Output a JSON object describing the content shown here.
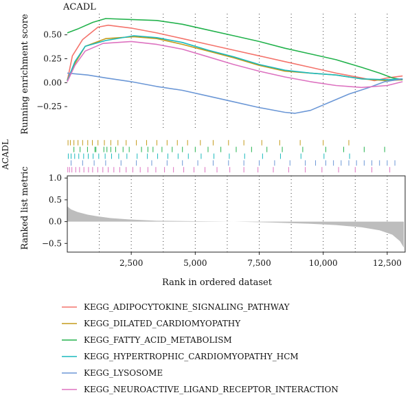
{
  "chart_data": {
    "type": "line",
    "title": "ACADL",
    "ylabel_top": "Running enrichment score",
    "ylabel_bottom": "Ranked list metric",
    "side_label": "ACADL",
    "xlabel": "Rank in ordered dataset",
    "xlim": [
      1,
      13200
    ],
    "top_ylim": [
      -0.5,
      0.72
    ],
    "bottom_ylim": [
      -0.7,
      1.05
    ],
    "x_ticks": [
      {
        "value": 2500,
        "label": "2,500"
      },
      {
        "value": 5000,
        "label": "5,000"
      },
      {
        "value": 7500,
        "label": "7,500"
      },
      {
        "value": 10000,
        "label": "10,000"
      },
      {
        "value": 12500,
        "label": "12,500"
      }
    ],
    "top_y_ticks": [
      {
        "value": 0.5,
        "label": "0.50"
      },
      {
        "value": 0.25,
        "label": "0.25"
      },
      {
        "value": 0.0,
        "label": "0.00"
      },
      {
        "value": -0.25,
        "label": "−0.25"
      }
    ],
    "bottom_y_ticks": [
      {
        "value": 1.0,
        "label": "1.0"
      },
      {
        "value": 0.5,
        "label": "0.5"
      },
      {
        "value": 0.0,
        "label": "0.0"
      },
      {
        "value": -0.5,
        "label": "−0.5"
      }
    ],
    "vertical_dotted_lines": [
      1250,
      2500,
      3750,
      5000,
      6250,
      7500,
      8750,
      10000,
      11250,
      12500
    ],
    "grid": false,
    "legend_position": "bottom",
    "series": [
      {
        "name": "KEGG_ADIPOCYTOKINE_SIGNALING_PATHWAY",
        "color": "#f4736b",
        "points": [
          [
            0,
            0.02
          ],
          [
            200,
            0.28
          ],
          [
            600,
            0.45
          ],
          [
            1200,
            0.58
          ],
          [
            1600,
            0.6
          ],
          [
            2500,
            0.57
          ],
          [
            3500,
            0.52
          ],
          [
            4500,
            0.46
          ],
          [
            5500,
            0.4
          ],
          [
            6500,
            0.34
          ],
          [
            7500,
            0.28
          ],
          [
            8500,
            0.22
          ],
          [
            9500,
            0.16
          ],
          [
            10500,
            0.1
          ],
          [
            11500,
            0.05
          ],
          [
            12000,
            0.02
          ],
          [
            12500,
            0.05
          ],
          [
            13100,
            0.07
          ]
        ],
        "hits": []
      },
      {
        "name": "KEGG_DILATED_CARDIOMYOPATHY",
        "color": "#c39a1a",
        "points": [
          [
            0,
            0.03
          ],
          [
            300,
            0.2
          ],
          [
            700,
            0.38
          ],
          [
            1500,
            0.46
          ],
          [
            2600,
            0.48
          ],
          [
            3500,
            0.46
          ],
          [
            4500,
            0.4
          ],
          [
            5500,
            0.33
          ],
          [
            6500,
            0.26
          ],
          [
            7500,
            0.18
          ],
          [
            8500,
            0.12
          ],
          [
            9500,
            0.1
          ],
          [
            10500,
            0.08
          ],
          [
            11500,
            0.04
          ],
          [
            12500,
            0.02
          ],
          [
            13100,
            0.03
          ]
        ],
        "hits": [
          30,
          120,
          260,
          420,
          600,
          800,
          980,
          1200,
          1450,
          1700,
          1980,
          2300,
          2700,
          3100,
          3500,
          3900,
          4300,
          4700,
          5200,
          5700,
          6300,
          6900,
          7600,
          8300,
          9100,
          10000,
          11000
        ]
      },
      {
        "name": "KEGG_FATTY_ACID_METABOLISM",
        "color": "#22b24c",
        "points": [
          [
            0,
            0.52
          ],
          [
            400,
            0.56
          ],
          [
            1000,
            0.63
          ],
          [
            1500,
            0.67
          ],
          [
            2500,
            0.66
          ],
          [
            3500,
            0.65
          ],
          [
            4500,
            0.61
          ],
          [
            5500,
            0.55
          ],
          [
            6500,
            0.49
          ],
          [
            7500,
            0.43
          ],
          [
            8500,
            0.36
          ],
          [
            9500,
            0.3
          ],
          [
            10500,
            0.24
          ],
          [
            11500,
            0.16
          ],
          [
            12200,
            0.1
          ],
          [
            12700,
            0.05
          ],
          [
            13100,
            0.03
          ]
        ],
        "hits": [
          260,
          500,
          790,
          1080,
          1120,
          1430,
          1550,
          1700,
          1890,
          2180,
          2420,
          2900,
          3150,
          3350,
          3700,
          4100,
          4500,
          5000,
          5500,
          6000,
          6600,
          7200,
          7800,
          8400,
          9200,
          10100,
          10800,
          11600,
          12400
        ]
      },
      {
        "name": "KEGG_HYPERTROPHIC_CARDIOMYOPATHY_HCM",
        "color": "#1ab9bd",
        "points": [
          [
            0,
            0.02
          ],
          [
            300,
            0.22
          ],
          [
            700,
            0.38
          ],
          [
            1500,
            0.44
          ],
          [
            2600,
            0.49
          ],
          [
            3500,
            0.47
          ],
          [
            4500,
            0.42
          ],
          [
            5500,
            0.34
          ],
          [
            6500,
            0.27
          ],
          [
            7500,
            0.19
          ],
          [
            8500,
            0.13
          ],
          [
            9500,
            0.1
          ],
          [
            10500,
            0.08
          ],
          [
            11500,
            0.04
          ],
          [
            12500,
            0.03
          ],
          [
            13100,
            0.04
          ]
        ],
        "hits": [
          40,
          150,
          290,
          450,
          640,
          820,
          1010,
          1230,
          1480,
          1730,
          2010,
          2330,
          2730,
          3130,
          3530,
          3930,
          4330,
          4730,
          5230,
          5730,
          6330,
          6930,
          7630,
          8330,
          9130,
          10030,
          11030
        ]
      },
      {
        "name": "KEGG_LYSOSOME",
        "color": "#6b97d6",
        "points": [
          [
            0,
            0.1
          ],
          [
            800,
            0.08
          ],
          [
            1500,
            0.05
          ],
          [
            2500,
            0.01
          ],
          [
            3500,
            -0.04
          ],
          [
            4500,
            -0.08
          ],
          [
            5500,
            -0.14
          ],
          [
            6500,
            -0.2
          ],
          [
            7500,
            -0.26
          ],
          [
            8500,
            -0.31
          ],
          [
            8900,
            -0.32
          ],
          [
            9500,
            -0.29
          ],
          [
            10200,
            -0.21
          ],
          [
            11000,
            -0.12
          ],
          [
            11800,
            -0.05
          ],
          [
            12400,
            0.01
          ],
          [
            13100,
            0.04
          ]
        ],
        "hits": [
          150,
          600,
          1050,
          1500,
          2100,
          2700,
          3300,
          3900,
          4500,
          5100,
          5700,
          6300,
          6900,
          7500,
          8100,
          8700,
          9300,
          9700,
          10100,
          10400,
          10700,
          11000,
          11300,
          11600,
          11900,
          12200,
          12500,
          12800
        ]
      },
      {
        "name": "KEGG_NEUROACTIVE_LIGAND_RECEPTOR_INTERACTION",
        "color": "#dd72c0",
        "points": [
          [
            0,
            0.01
          ],
          [
            300,
            0.18
          ],
          [
            700,
            0.33
          ],
          [
            1400,
            0.41
          ],
          [
            2500,
            0.43
          ],
          [
            3500,
            0.4
          ],
          [
            4500,
            0.35
          ],
          [
            5500,
            0.27
          ],
          [
            6500,
            0.19
          ],
          [
            7500,
            0.12
          ],
          [
            8500,
            0.06
          ],
          [
            9500,
            0.01
          ],
          [
            10500,
            -0.03
          ],
          [
            11500,
            -0.05
          ],
          [
            12500,
            -0.03
          ],
          [
            13100,
            0.01
          ]
        ],
        "hits": [
          20,
          90,
          180,
          330,
          480,
          650,
          830,
          990,
          1190,
          1390,
          1600,
          1820,
          2050,
          2300,
          2560,
          2850,
          3150,
          3460,
          3800,
          4150,
          4550,
          4950,
          5380,
          5850,
          6350,
          6900,
          7450,
          8050,
          8650,
          9300,
          9950,
          10600,
          11250,
          11900,
          12600
        ]
      }
    ],
    "ranked_metric": {
      "color": "#bdbdbd",
      "points": [
        [
          0,
          0.35
        ],
        [
          150,
          0.28
        ],
        [
          400,
          0.22
        ],
        [
          800,
          0.16
        ],
        [
          1200,
          0.12
        ],
        [
          1700,
          0.08
        ],
        [
          2400,
          0.05
        ],
        [
          3500,
          0.02
        ],
        [
          5000,
          0.01
        ],
        [
          6500,
          0.0
        ],
        [
          8000,
          -0.02
        ],
        [
          9500,
          -0.05
        ],
        [
          10500,
          -0.08
        ],
        [
          11500,
          -0.13
        ],
        [
          12200,
          -0.2
        ],
        [
          12700,
          -0.3
        ],
        [
          13000,
          -0.45
        ],
        [
          13150,
          -0.6
        ]
      ]
    }
  }
}
